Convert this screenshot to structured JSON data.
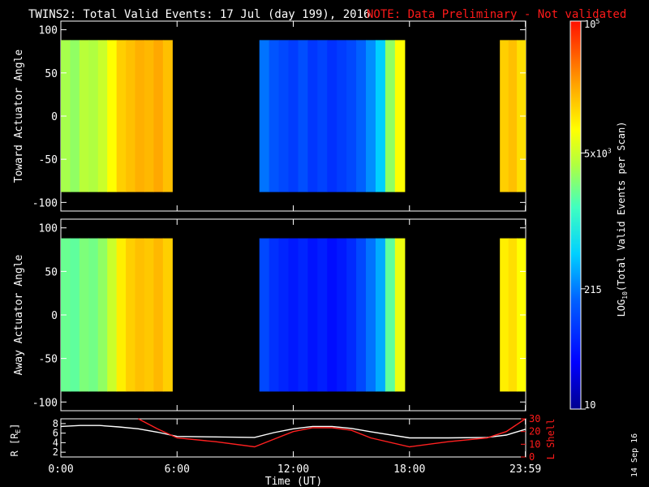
{
  "header": {
    "title": "TWINS2: Total Valid Events: 17 Jul (day 199), 2016",
    "note": "NOTE: Data Preliminary - Not validated"
  },
  "chart_data": [
    {
      "type": "heatmap",
      "name": "toward-panel",
      "ylabel": "Toward Actuator Angle",
      "ylim": [
        -110,
        110
      ],
      "yticks": [
        100,
        50,
        0,
        -50,
        -100
      ],
      "y_extent": [
        -88,
        88
      ],
      "segments": [
        {
          "x_start": "0:00",
          "x_end": "5:45",
          "levels": [
            0.62,
            0.6,
            0.64,
            0.63,
            0.66,
            0.72,
            0.78,
            0.8,
            0.82,
            0.81,
            0.83,
            0.8
          ]
        },
        {
          "x_start": "10:15",
          "x_end": "17:45",
          "levels": [
            0.3,
            0.26,
            0.24,
            0.22,
            0.25,
            0.21,
            0.23,
            0.2,
            0.22,
            0.24,
            0.28,
            0.33,
            0.4,
            0.6,
            0.72
          ]
        },
        {
          "x_start": "22:40",
          "x_end": "23:59",
          "levels": [
            0.78,
            0.8,
            0.76
          ]
        }
      ]
    },
    {
      "type": "heatmap",
      "name": "away-panel",
      "ylabel": "Away Actuator Angle",
      "ylim": [
        -110,
        110
      ],
      "yticks": [
        100,
        50,
        0,
        -50,
        -100
      ],
      "y_extent": [
        -88,
        88
      ],
      "segments": [
        {
          "x_start": "0:00",
          "x_end": "5:45",
          "levels": [
            0.56,
            0.55,
            0.58,
            0.57,
            0.6,
            0.66,
            0.74,
            0.78,
            0.8,
            0.79,
            0.81,
            0.78
          ]
        },
        {
          "x_start": "10:15",
          "x_end": "17:45",
          "levels": [
            0.24,
            0.2,
            0.18,
            0.16,
            0.18,
            0.15,
            0.17,
            0.14,
            0.16,
            0.19,
            0.24,
            0.3,
            0.36,
            0.55,
            0.7
          ]
        },
        {
          "x_start": "22:40",
          "x_end": "23:59",
          "levels": [
            0.74,
            0.76,
            0.72
          ]
        }
      ]
    },
    {
      "type": "line",
      "name": "orbit-panel",
      "ylabel_left": "R [R",
      "ylabel_left_sub": "E",
      "ylabel_right": "L Shell",
      "yticks_left": [
        8,
        6,
        4,
        2
      ],
      "yticks_right": [
        30,
        20,
        10,
        0
      ],
      "ylim_left": [
        1,
        9
      ],
      "ylim_right": [
        0,
        30
      ],
      "x": [
        "0:00",
        "1:00",
        "2:00",
        "3:00",
        "4:00",
        "5:00",
        "6:00",
        "8:00",
        "10:00",
        "11:00",
        "12:00",
        "13:00",
        "14:00",
        "15:00",
        "16:00",
        "18:00",
        "20:00",
        "22:00",
        "23:00",
        "23:59"
      ],
      "series": [
        {
          "color": "#ffffff",
          "values": [
            7.4,
            7.6,
            7.6,
            7.3,
            6.9,
            6.2,
            5.3,
            5.2,
            5.1,
            6.1,
            6.9,
            7.4,
            7.4,
            7.0,
            6.3,
            5.0,
            5.0,
            5.1,
            5.6,
            6.8
          ]
        },
        {
          "color": "#ff2020",
          "values": [
            null,
            null,
            null,
            null,
            32,
            22,
            15,
            12,
            8,
            14,
            20,
            23,
            23,
            21,
            15,
            8,
            12,
            15,
            20,
            32
          ]
        }
      ]
    }
  ],
  "axes": {
    "xticks": [
      "0:00",
      "6:00",
      "12:00",
      "18:00",
      "23:59"
    ],
    "xlabel": "Time (UT)"
  },
  "colorbar": {
    "label": "LOG",
    "label_sub": "10",
    "label_rest": "(Total Valid Events per Scan)",
    "ticks": [
      {
        "base": "10",
        "exp": "5",
        "level": 1.0
      },
      {
        "base": "5x10",
        "exp": "3",
        "level": 0.66
      },
      {
        "base": "215",
        "exp": "",
        "level": 0.31
      },
      {
        "base": "10",
        "exp": "",
        "level": 0.0
      }
    ]
  },
  "footer": {
    "date_stamp": "14 Sep 16"
  }
}
